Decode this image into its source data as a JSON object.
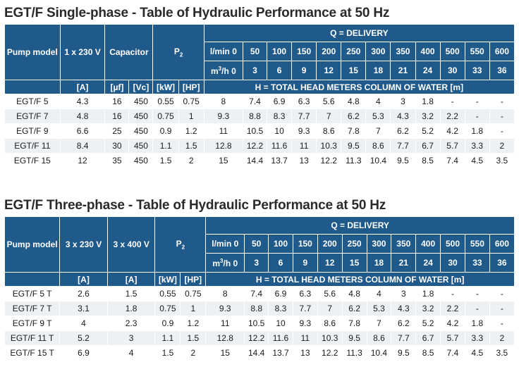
{
  "tables": [
    {
      "title": "EGT/F Single-phase - Table of Hydraulic Performance at 50 Hz",
      "col_pump_model": "Pump model",
      "col_a": "1 x 230 V",
      "col_b": "Capacitor",
      "col_p2_base": "P",
      "col_p2_sub": "2",
      "delivery_label": "Q = DELIVERY",
      "lmin_label": "l/min 0",
      "m3h_base": "m",
      "m3h_sup": "3",
      "m3h_rest": "/h 0",
      "lmin_values": [
        "50",
        "100",
        "150",
        "200",
        "250",
        "300",
        "350",
        "400",
        "500",
        "550",
        "600"
      ],
      "m3h_values": [
        "3",
        "6",
        "9",
        "12",
        "15",
        "18",
        "21",
        "24",
        "30",
        "33",
        "36"
      ],
      "unit_a": "[A]",
      "unit_b1": "[µf]",
      "unit_b2": "[Vc]",
      "unit_kw": "[kW]",
      "unit_hp": "[HP]",
      "head_label": "H = TOTAL HEAD METERS COLUMN OF WATER [m]",
      "rows": [
        {
          "model": "EGT/F 5",
          "a": "4.3",
          "b1": "16",
          "b2": "450",
          "kw": "0.55",
          "hp": "0.75",
          "h": [
            "8",
            "7.4",
            "6.9",
            "6.3",
            "5.6",
            "4.8",
            "4",
            "3",
            "1.8",
            "-",
            "-",
            "-"
          ]
        },
        {
          "model": "EGT/F 7",
          "a": "4.8",
          "b1": "16",
          "b2": "450",
          "kw": "0.75",
          "hp": "1",
          "h": [
            "9.3",
            "8.8",
            "8.3",
            "7.7",
            "7",
            "6.2",
            "5.3",
            "4.3",
            "3.2",
            "2.2",
            "-",
            "-"
          ]
        },
        {
          "model": "EGT/F 9",
          "a": "6.6",
          "b1": "25",
          "b2": "450",
          "kw": "0.9",
          "hp": "1.2",
          "h": [
            "11",
            "10.5",
            "10",
            "9.3",
            "8.6",
            "7.8",
            "7",
            "6.2",
            "5.2",
            "4.2",
            "1.8",
            "-"
          ]
        },
        {
          "model": "EGT/F 11",
          "a": "8.4",
          "b1": "30",
          "b2": "450",
          "kw": "1.1",
          "hp": "1.5",
          "h": [
            "12.8",
            "12.2",
            "11.6",
            "11",
            "10.3",
            "9.5",
            "8.6",
            "7.7",
            "6.7",
            "5.7",
            "3.3",
            "2"
          ]
        },
        {
          "model": "EGT/F 15",
          "a": "12",
          "b1": "35",
          "b2": "450",
          "kw": "1.5",
          "hp": "2",
          "h": [
            "15",
            "14.4",
            "13.7",
            "13",
            "12.2",
            "11.3",
            "10.4",
            "9.5",
            "8.5",
            "7.4",
            "4.5",
            "3.5"
          ]
        }
      ]
    },
    {
      "title": "EGT/F Three-phase - Table of Hydraulic Performance at 50 Hz",
      "col_pump_model": "Pump model",
      "col_a": "3 x 230 V",
      "col_b": "3 x 400 V",
      "col_p2_base": "P",
      "col_p2_sub": "2",
      "delivery_label": "Q = DELIVERY",
      "lmin_label": "l/min 0",
      "m3h_base": "m",
      "m3h_sup": "3",
      "m3h_rest": "/h 0",
      "lmin_values": [
        "50",
        "100",
        "150",
        "200",
        "250",
        "300",
        "350",
        "400",
        "500",
        "550",
        "600"
      ],
      "m3h_values": [
        "3",
        "6",
        "9",
        "12",
        "15",
        "18",
        "21",
        "24",
        "30",
        "33",
        "36"
      ],
      "unit_a": "[A]",
      "unit_b": "[A]",
      "unit_kw": "[kW]",
      "unit_hp": "[HP]",
      "head_label": "H = TOTAL HEAD METERS COLUMN OF WATER [m]",
      "rows": [
        {
          "model": "EGT/F 5 T",
          "a": "2.6",
          "b": "1.5",
          "kw": "0.55",
          "hp": "0.75",
          "h": [
            "8",
            "7.4",
            "6.9",
            "6.3",
            "5.6",
            "4.8",
            "4",
            "3",
            "1.8",
            "-",
            "-",
            "-"
          ]
        },
        {
          "model": "EGT/F 7 T",
          "a": "3.1",
          "b": "1.8",
          "kw": "0.75",
          "hp": "1",
          "h": [
            "9.3",
            "8.8",
            "8.3",
            "7.7",
            "7",
            "6.2",
            "5.3",
            "4.3",
            "3.2",
            "2.2",
            "-",
            "-"
          ]
        },
        {
          "model": "EGT/F 9 T",
          "a": "4",
          "b": "2.3",
          "kw": "0.9",
          "hp": "1.2",
          "h": [
            "11",
            "10.5",
            "10",
            "9.3",
            "8.6",
            "7.8",
            "7",
            "6.2",
            "5.2",
            "4.2",
            "1.8",
            "-"
          ]
        },
        {
          "model": "EGT/F 11 T",
          "a": "5.2",
          "b": "3",
          "kw": "1.1",
          "hp": "1.5",
          "h": [
            "12.8",
            "12.2",
            "11.6",
            "11",
            "10.3",
            "9.5",
            "8.6",
            "7.7",
            "6.7",
            "5.7",
            "3.3",
            "2"
          ]
        },
        {
          "model": "EGT/F 15 T",
          "a": "6.9",
          "b": "4",
          "kw": "1.5",
          "hp": "2",
          "h": [
            "15",
            "14.4",
            "13.7",
            "13",
            "12.2",
            "11.3",
            "10.4",
            "9.5",
            "8.5",
            "7.4",
            "4.5",
            "3.5"
          ]
        }
      ]
    }
  ],
  "colors": {
    "header_bg": "#1f5a8a",
    "header_text": "#ffffff",
    "row_alt": "#eef1f4",
    "grid": "#c9d3dd"
  }
}
